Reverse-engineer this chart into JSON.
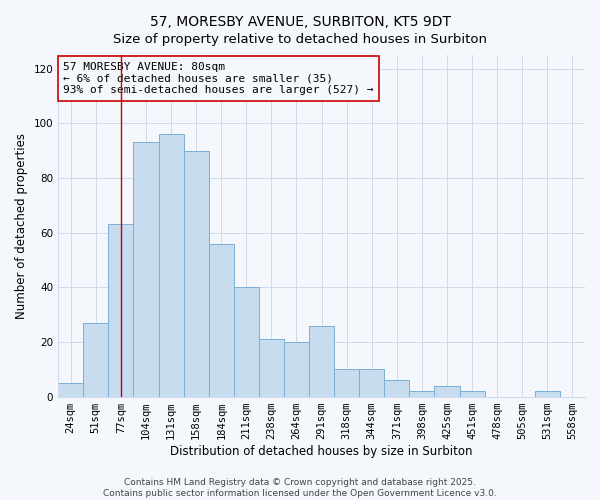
{
  "title": "57, MORESBY AVENUE, SURBITON, KT5 9DT",
  "subtitle": "Size of property relative to detached houses in Surbiton",
  "xlabel": "Distribution of detached houses by size in Surbiton",
  "ylabel": "Number of detached properties",
  "categories": [
    "24sqm",
    "51sqm",
    "77sqm",
    "104sqm",
    "131sqm",
    "158sqm",
    "184sqm",
    "211sqm",
    "238sqm",
    "264sqm",
    "291sqm",
    "318sqm",
    "344sqm",
    "371sqm",
    "398sqm",
    "425sqm",
    "451sqm",
    "478sqm",
    "505sqm",
    "531sqm",
    "558sqm"
  ],
  "values": [
    5,
    27,
    63,
    93,
    96,
    90,
    56,
    40,
    21,
    20,
    26,
    10,
    10,
    6,
    2,
    4,
    2,
    0,
    0,
    2,
    0
  ],
  "bar_color": "#c8dcf0",
  "bar_edge_color": "#7aafd4",
  "vline_x_index": 2,
  "vline_color": "#cc0000",
  "annotation_box_text": "57 MORESBY AVENUE: 80sqm\n← 6% of detached houses are smaller (35)\n93% of semi-detached houses are larger (527) →",
  "ylim": [
    0,
    125
  ],
  "yticks": [
    0,
    20,
    40,
    60,
    80,
    100,
    120
  ],
  "footer_line1": "Contains HM Land Registry data © Crown copyright and database right 2025.",
  "footer_line2": "Contains public sector information licensed under the Open Government Licence v3.0.",
  "bg_color": "#f4f7fb",
  "grid_color": "#d0daea",
  "title_fontsize": 10,
  "subtitle_fontsize": 9.5,
  "label_fontsize": 8.5,
  "tick_fontsize": 7.5,
  "annotation_fontsize": 8,
  "footer_fontsize": 6.5
}
